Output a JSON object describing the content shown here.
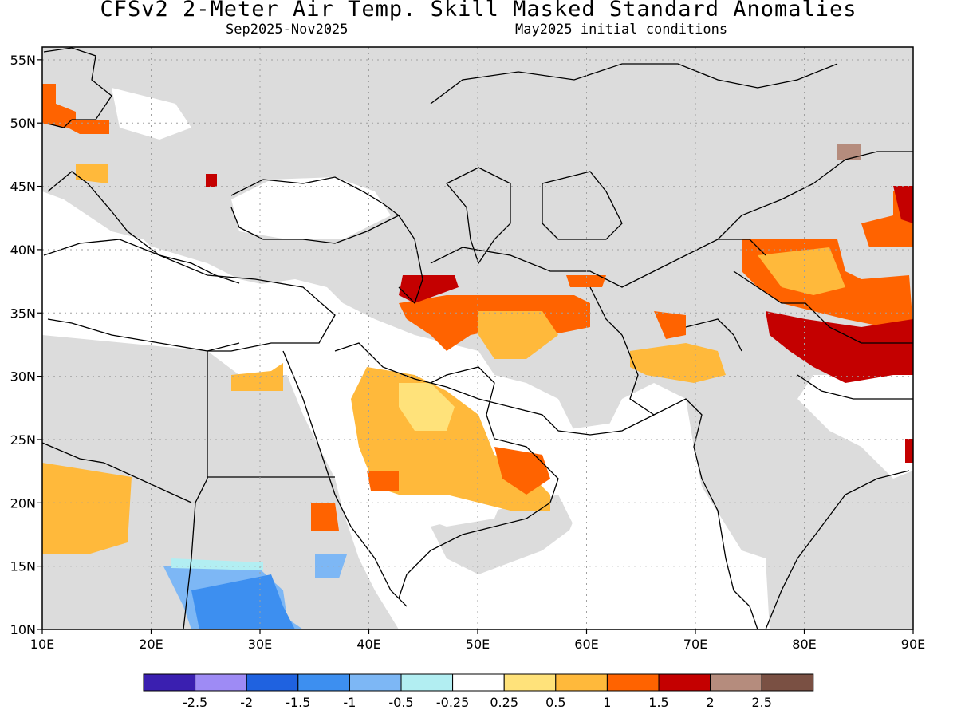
{
  "title": "CFSv2 2-Meter Air Temp. Skill Masked Standard Anomalies",
  "subtitle": {
    "period": "Sep2025-Nov2025",
    "initial_conditions": "May2025 initial conditions"
  },
  "map": {
    "lon_range": [
      10,
      90
    ],
    "lat_range": [
      10,
      56
    ],
    "x_ticks": [
      "10E",
      "20E",
      "30E",
      "40E",
      "50E",
      "60E",
      "70E",
      "80E",
      "90E"
    ],
    "x_tick_values": [
      10,
      20,
      30,
      40,
      50,
      60,
      70,
      80,
      90
    ],
    "y_ticks": [
      "10N",
      "15N",
      "20N",
      "25N",
      "30N",
      "35N",
      "40N",
      "45N",
      "50N",
      "55N"
    ],
    "y_tick_values": [
      10,
      15,
      20,
      25,
      30,
      35,
      40,
      45,
      50,
      55
    ],
    "masked_color": "#dcdcdc",
    "coastline_color": "#000000",
    "grid_color": "#a0a0a0"
  },
  "colorbar": {
    "colors": [
      "#3a1fb0",
      "#9e8bf5",
      "#1f62e0",
      "#3d8ff0",
      "#7db7f5",
      "#b2eef2",
      "#ffffff",
      "#ffe27a",
      "#ffb93b",
      "#ff6300",
      "#c40000",
      "#b58c7d",
      "#7a5043"
    ],
    "labels": [
      "-2.5",
      "-2",
      "-1.5",
      "-1",
      "-0.5",
      "-0.25",
      "0.25",
      "0.5",
      "1",
      "1.5",
      "2",
      "2.5"
    ],
    "bounds": [
      -2.5,
      -2,
      -1.5,
      -1,
      -0.5,
      -0.25,
      0.25,
      0.5,
      1,
      1.5,
      2,
      2.5
    ]
  }
}
